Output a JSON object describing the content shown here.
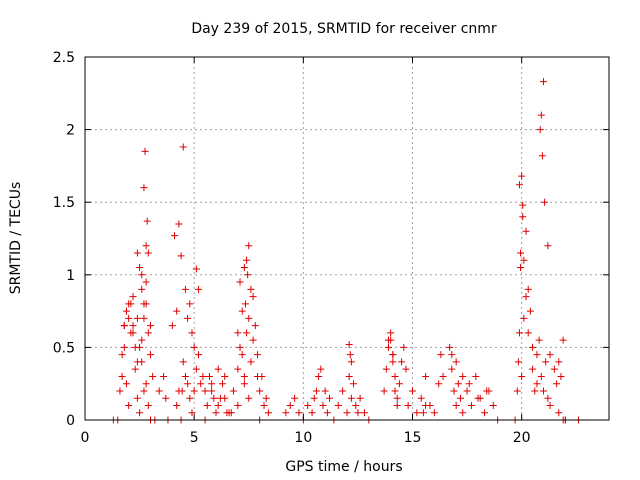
{
  "chart_data": {
    "type": "scatter",
    "title": "Day 239 of 2015, SRMTID for receiver cnmr",
    "xlabel": "GPS time / hours",
    "ylabel": "SRMTID / TECUs",
    "xlim": [
      0,
      24
    ],
    "ylim": [
      0,
      2.5
    ],
    "xticks": [
      0,
      5,
      10,
      15,
      20
    ],
    "xtick_labels": [
      "0",
      "5",
      "10",
      "15",
      "20"
    ],
    "yticks": [
      0,
      0.5,
      1,
      1.5,
      2,
      2.5
    ],
    "ytick_labels": [
      "0",
      "0.5",
      "1",
      "1.5",
      "2",
      "2.5"
    ],
    "grid": true,
    "marker": "+",
    "color": "#e00000",
    "series": [
      {
        "name": "SRMTID",
        "x": [
          1.3,
          1.5,
          1.6,
          1.7,
          1.8,
          1.9,
          2.0,
          2.1,
          2.2,
          2.3,
          2.4,
          2.5,
          2.6,
          2.7,
          2.8,
          2.9,
          3.0,
          3.1,
          1.7,
          1.8,
          1.9,
          2.0,
          2.1,
          2.2,
          2.3,
          2.4,
          2.5,
          2.6,
          2.7,
          2.8,
          2.9,
          3.0,
          1.8,
          2.0,
          2.2,
          2.4,
          2.6,
          2.8,
          3.0,
          2.7,
          2.75,
          2.8,
          2.85,
          2.9,
          2.5,
          2.6,
          2.7,
          2.4,
          3.2,
          3.4,
          3.6,
          3.7,
          3.8,
          4.0,
          4.1,
          4.2,
          4.3,
          4.4,
          4.5,
          4.6,
          4.7,
          4.8,
          4.9,
          5.0,
          5.1,
          5.2,
          4.2,
          4.3,
          4.4,
          4.45,
          4.5,
          4.6,
          4.7,
          4.8,
          4.9,
          5.0,
          5.1,
          5.3,
          5.5,
          5.7,
          5.9,
          6.1,
          6.3,
          6.5,
          5.2,
          5.4,
          5.6,
          5.8,
          6.0,
          6.2,
          6.4,
          6.6,
          6.8,
          7.0,
          5.5,
          5.8,
          6.1,
          6.4,
          6.7,
          6.8,
          7.0,
          7.1,
          7.2,
          7.3,
          7.4,
          7.5,
          7.6,
          7.7,
          7.8,
          7.9,
          8.0,
          8.1,
          8.2,
          8.3,
          8.4,
          7.0,
          7.2,
          7.3,
          7.4,
          7.5,
          7.6,
          7.7,
          7.1,
          7.3,
          7.5,
          7.35,
          7.45,
          7.9,
          8.0,
          9.2,
          9.4,
          9.6,
          9.8,
          10.0,
          10.2,
          10.4,
          10.5,
          10.6,
          10.7,
          10.8,
          10.9,
          11.0,
          11.1,
          11.2,
          11.4,
          11.6,
          11.8,
          12.0,
          12.1,
          12.2,
          12.3,
          12.4,
          12.5,
          12.6,
          12.8,
          13.0,
          12.1,
          12.15,
          12.2,
          13.7,
          13.8,
          13.9,
          14.0,
          14.1,
          14.2,
          14.3,
          14.4,
          14.5,
          14.6,
          14.7,
          14.8,
          15.0,
          15.2,
          15.4,
          15.6,
          15.8,
          16.0,
          16.2,
          16.4,
          13.9,
          14.0,
          14.1,
          14.2,
          14.3,
          14.1,
          15.5,
          15.6,
          16.3,
          16.7,
          16.8,
          16.9,
          17.0,
          17.1,
          17.2,
          17.3,
          17.5,
          17.7,
          17.9,
          18.1,
          18.3,
          18.5,
          18.7,
          18.9,
          16.8,
          17.0,
          17.3,
          17.6,
          18.0,
          18.4,
          19.7,
          19.8,
          19.85,
          19.9,
          19.95,
          20.0,
          20.05,
          20.1,
          20.2,
          20.3,
          20.4,
          20.5,
          20.6,
          20.7,
          20.8,
          20.9,
          21.0,
          21.1,
          21.2,
          21.3,
          21.5,
          21.7,
          21.9,
          22.0,
          19.9,
          19.95,
          20.0,
          20.05,
          20.1,
          20.2,
          20.3,
          20.5,
          20.7,
          20.85,
          20.9,
          20.95,
          21.0,
          21.05,
          21.2,
          21.3,
          21.8,
          21.9,
          22.0,
          21.6,
          21.7,
          22.6
        ],
        "y": [
          0.0,
          0.0,
          0.2,
          0.45,
          0.65,
          0.75,
          0.7,
          0.8,
          0.6,
          0.5,
          0.4,
          0.5,
          0.55,
          0.7,
          0.8,
          0.6,
          0.45,
          0.3,
          0.3,
          0.5,
          0.25,
          0.1,
          0.6,
          0.65,
          0.35,
          0.15,
          0.05,
          0.4,
          0.2,
          0.25,
          0.1,
          0.0,
          0.65,
          0.8,
          0.85,
          1.15,
          0.9,
          0.95,
          0.65,
          1.6,
          1.85,
          1.2,
          1.37,
          1.15,
          1.05,
          1.0,
          0.8,
          0.7,
          0.0,
          0.2,
          0.3,
          0.15,
          0.0,
          0.65,
          1.27,
          0.75,
          1.35,
          1.13,
          1.88,
          0.9,
          0.7,
          0.8,
          0.6,
          0.5,
          1.04,
          0.9,
          0.1,
          0.2,
          0.0,
          0.2,
          0.4,
          0.3,
          0.25,
          0.15,
          0.05,
          0.2,
          0.35,
          0.25,
          0.2,
          0.3,
          0.15,
          0.1,
          0.25,
          0.05,
          0.45,
          0.3,
          0.1,
          0.2,
          0.05,
          0.15,
          0.3,
          0.05,
          0.2,
          0.1,
          0.0,
          0.25,
          0.35,
          0.15,
          0.05,
          0.2,
          0.35,
          0.5,
          0.45,
          0.3,
          0.6,
          0.7,
          0.4,
          0.55,
          0.65,
          0.45,
          0.2,
          0.3,
          0.1,
          0.15,
          0.05,
          0.6,
          0.75,
          1.05,
          1.1,
          1.2,
          0.9,
          0.85,
          0.95,
          0.25,
          0.15,
          0.8,
          1.0,
          0.3,
          0.0,
          0.05,
          0.1,
          0.15,
          0.05,
          0.0,
          0.1,
          0.05,
          0.15,
          0.2,
          0.3,
          0.35,
          0.1,
          0.2,
          0.05,
          0.15,
          0.0,
          0.1,
          0.2,
          0.05,
          0.3,
          0.15,
          0.25,
          0.1,
          0.05,
          0.15,
          0.05,
          0.0,
          0.52,
          0.45,
          0.4,
          0.2,
          0.35,
          0.5,
          0.6,
          0.45,
          0.3,
          0.15,
          0.25,
          0.4,
          0.5,
          0.35,
          0.1,
          0.2,
          0.05,
          0.15,
          0.3,
          0.1,
          0.05,
          0.25,
          0.3,
          0.55,
          0.55,
          0.4,
          0.2,
          0.1,
          0.45,
          0.05,
          0.1,
          0.45,
          0.5,
          0.35,
          0.2,
          0.1,
          0.25,
          0.15,
          0.05,
          0.2,
          0.1,
          0.3,
          0.15,
          0.05,
          0.2,
          0.1,
          0.0,
          0.45,
          0.4,
          0.3,
          0.25,
          0.15,
          0.2,
          0.0,
          0.2,
          0.4,
          0.6,
          1.05,
          1.68,
          1.4,
          1.1,
          0.85,
          0.6,
          0.75,
          0.5,
          0.2,
          0.45,
          0.55,
          0.3,
          0.2,
          0.4,
          0.15,
          0.1,
          0.35,
          0.05,
          0.0,
          0.0,
          1.62,
          1.15,
          0.3,
          1.48,
          0.7,
          1.3,
          0.9,
          0.35,
          0.25,
          2.0,
          2.1,
          1.82,
          2.33,
          1.5,
          1.2,
          0.45,
          0.3,
          0.55,
          0.0,
          0.25,
          0.4,
          0.0
        ]
      }
    ]
  }
}
